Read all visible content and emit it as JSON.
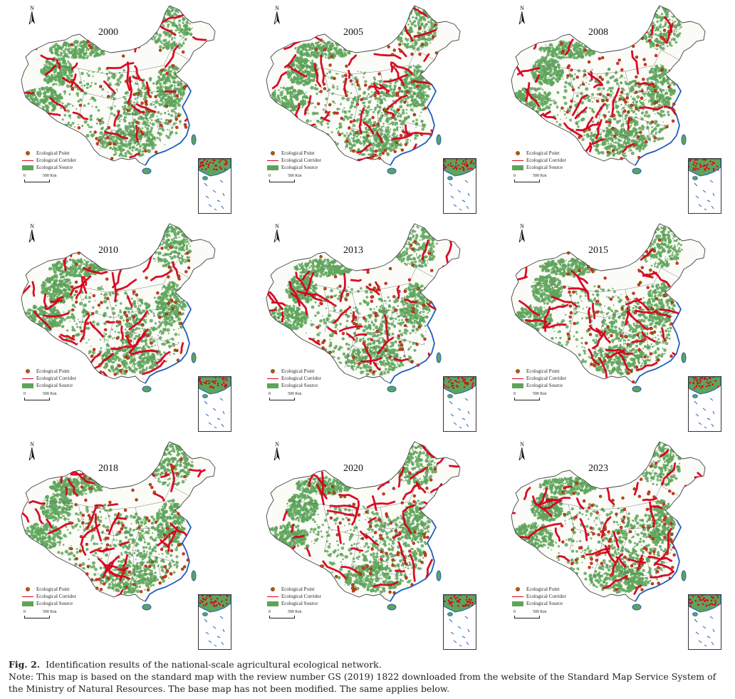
{
  "panels": [
    {
      "year": "2000",
      "corridors": 32,
      "points": 60,
      "seed": 11
    },
    {
      "year": "2005",
      "corridors": 42,
      "points": 80,
      "seed": 23
    },
    {
      "year": "2008",
      "corridors": 34,
      "points": 90,
      "seed": 37
    },
    {
      "year": "2010",
      "corridors": 40,
      "points": 70,
      "seed": 41
    },
    {
      "year": "2013",
      "corridors": 38,
      "points": 75,
      "seed": 53
    },
    {
      "year": "2015",
      "corridors": 38,
      "points": 75,
      "seed": 67
    },
    {
      "year": "2018",
      "corridors": 40,
      "points": 85,
      "seed": 71
    },
    {
      "year": "2020",
      "corridors": 42,
      "points": 70,
      "seed": 83
    },
    {
      "year": "2023",
      "corridors": 44,
      "points": 95,
      "seed": 97
    }
  ],
  "legend": {
    "point": "Ecological Point",
    "corridor": "Ecological Corridor",
    "source": "Ecological Source"
  },
  "scale": {
    "zero": "0",
    "distance": "500 Km"
  },
  "north_label": "N",
  "colors": {
    "source": "#5ea45a",
    "corridor": "#d8001b",
    "point": "#8c6d00",
    "boundary": "#444444",
    "coast": "#1f5fbf"
  },
  "caption": {
    "fig_label": "Fig. 2.",
    "title": "Identification results of the national-scale agricultural ecological network.",
    "note": "Note: This map is based on the standard map with the review number GS (2019) 1822 downloaded from the website of the Standard Map Service System of the Ministry of Natural Resources. The base map has not been modified. The same applies below."
  }
}
